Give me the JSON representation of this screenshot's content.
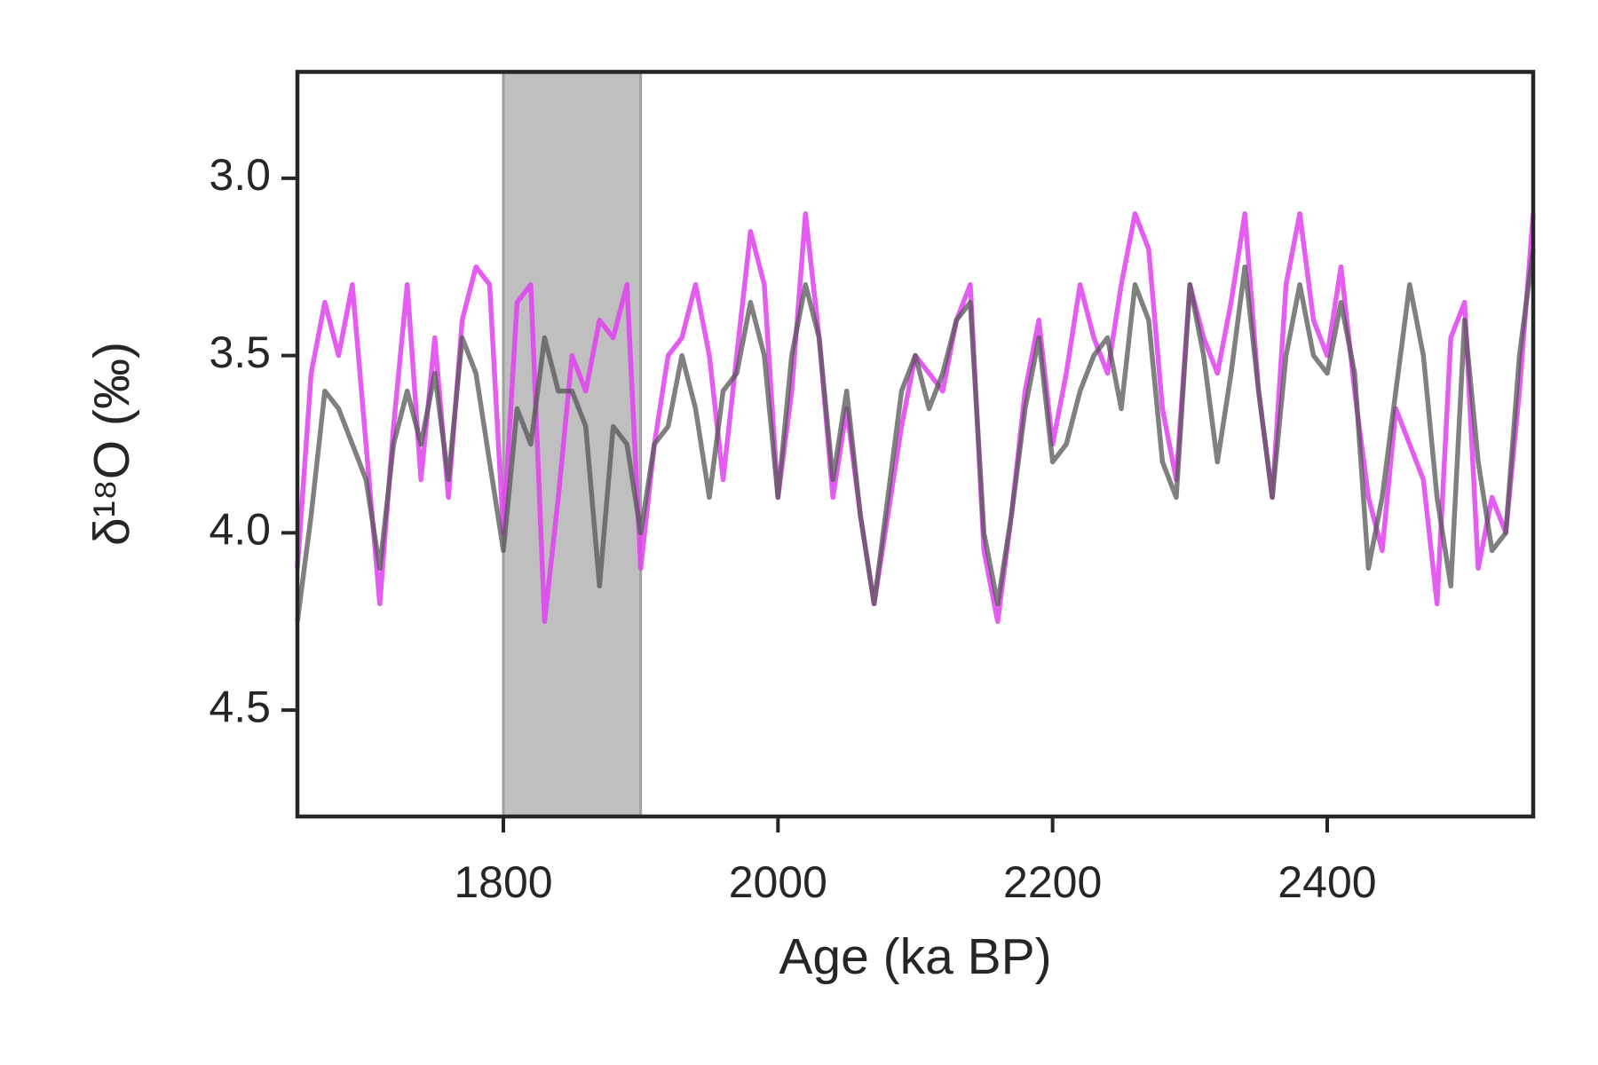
{
  "chart_data": {
    "type": "line",
    "xlabel": "Age (ka BP)",
    "ylabel": "δ¹⁸O (‰)",
    "x": [
      1650,
      1660,
      1670,
      1680,
      1690,
      1700,
      1710,
      1720,
      1730,
      1740,
      1750,
      1760,
      1770,
      1780,
      1790,
      1800,
      1810,
      1820,
      1830,
      1840,
      1850,
      1860,
      1870,
      1880,
      1890,
      1900,
      1910,
      1920,
      1930,
      1940,
      1950,
      1960,
      1970,
      1980,
      1990,
      2000,
      2010,
      2020,
      2030,
      2040,
      2050,
      2060,
      2070,
      2080,
      2090,
      2100,
      2110,
      2120,
      2130,
      2140,
      2150,
      2160,
      2170,
      2180,
      2190,
      2200,
      2210,
      2220,
      2230,
      2240,
      2250,
      2260,
      2270,
      2280,
      2290,
      2300,
      2310,
      2320,
      2330,
      2340,
      2350,
      2360,
      2370,
      2380,
      2390,
      2400,
      2410,
      2420,
      2430,
      2440,
      2450,
      2460,
      2470,
      2480,
      2490,
      2500,
      2510,
      2520,
      2530,
      2540,
      2550
    ],
    "series": [
      {
        "color": "#e040f0",
        "values": [
          4.1,
          3.55,
          3.35,
          3.5,
          3.3,
          3.75,
          4.2,
          3.7,
          3.3,
          3.85,
          3.45,
          3.9,
          3.4,
          3.25,
          3.3,
          4.0,
          3.35,
          3.3,
          4.25,
          3.9,
          3.5,
          3.6,
          3.4,
          3.45,
          3.3,
          4.1,
          3.75,
          3.5,
          3.45,
          3.3,
          3.5,
          3.85,
          3.5,
          3.15,
          3.3,
          3.9,
          3.6,
          3.1,
          3.45,
          3.9,
          3.65,
          3.95,
          4.2,
          3.95,
          3.7,
          3.5,
          3.55,
          3.6,
          3.4,
          3.3,
          4.05,
          4.25,
          3.95,
          3.6,
          3.4,
          3.75,
          3.55,
          3.3,
          3.45,
          3.55,
          3.3,
          3.1,
          3.2,
          3.65,
          3.85,
          3.3,
          3.45,
          3.55,
          3.35,
          3.1,
          3.6,
          3.9,
          3.3,
          3.1,
          3.4,
          3.5,
          3.25,
          3.6,
          3.9,
          4.05,
          3.65,
          3.75,
          3.85,
          4.2,
          3.45,
          3.35,
          4.1,
          3.9,
          4.0,
          3.6,
          3.1
        ]
      },
      {
        "color": "#555555",
        "values": [
          4.25,
          3.95,
          3.6,
          3.65,
          3.75,
          3.85,
          4.1,
          3.75,
          3.6,
          3.75,
          3.55,
          3.85,
          3.45,
          3.55,
          3.8,
          4.05,
          3.65,
          3.75,
          3.45,
          3.6,
          3.6,
          3.7,
          4.15,
          3.7,
          3.75,
          4.0,
          3.75,
          3.7,
          3.5,
          3.65,
          3.9,
          3.6,
          3.55,
          3.35,
          3.5,
          3.9,
          3.5,
          3.3,
          3.45,
          3.85,
          3.6,
          3.95,
          4.2,
          3.9,
          3.6,
          3.5,
          3.65,
          3.55,
          3.4,
          3.35,
          4.0,
          4.2,
          3.95,
          3.65,
          3.45,
          3.8,
          3.75,
          3.6,
          3.5,
          3.45,
          3.65,
          3.3,
          3.4,
          3.8,
          3.9,
          3.3,
          3.5,
          3.8,
          3.55,
          3.25,
          3.6,
          3.9,
          3.5,
          3.3,
          3.5,
          3.55,
          3.35,
          3.55,
          4.1,
          3.9,
          3.6,
          3.3,
          3.5,
          3.9,
          4.15,
          3.4,
          3.8,
          4.05,
          4.0,
          3.5,
          3.2
        ]
      }
    ],
    "shade": [
      1800,
      1900
    ],
    "xlim": [
      1650,
      2550
    ],
    "xticks": [
      1800,
      2000,
      2200,
      2400
    ],
    "ylim": [
      4.8,
      2.7
    ],
    "yticks": [
      {
        "value": 3,
        "label": "3.0"
      },
      3.5,
      {
        "value": 4,
        "label": "4.0"
      },
      4.5
    ]
  }
}
